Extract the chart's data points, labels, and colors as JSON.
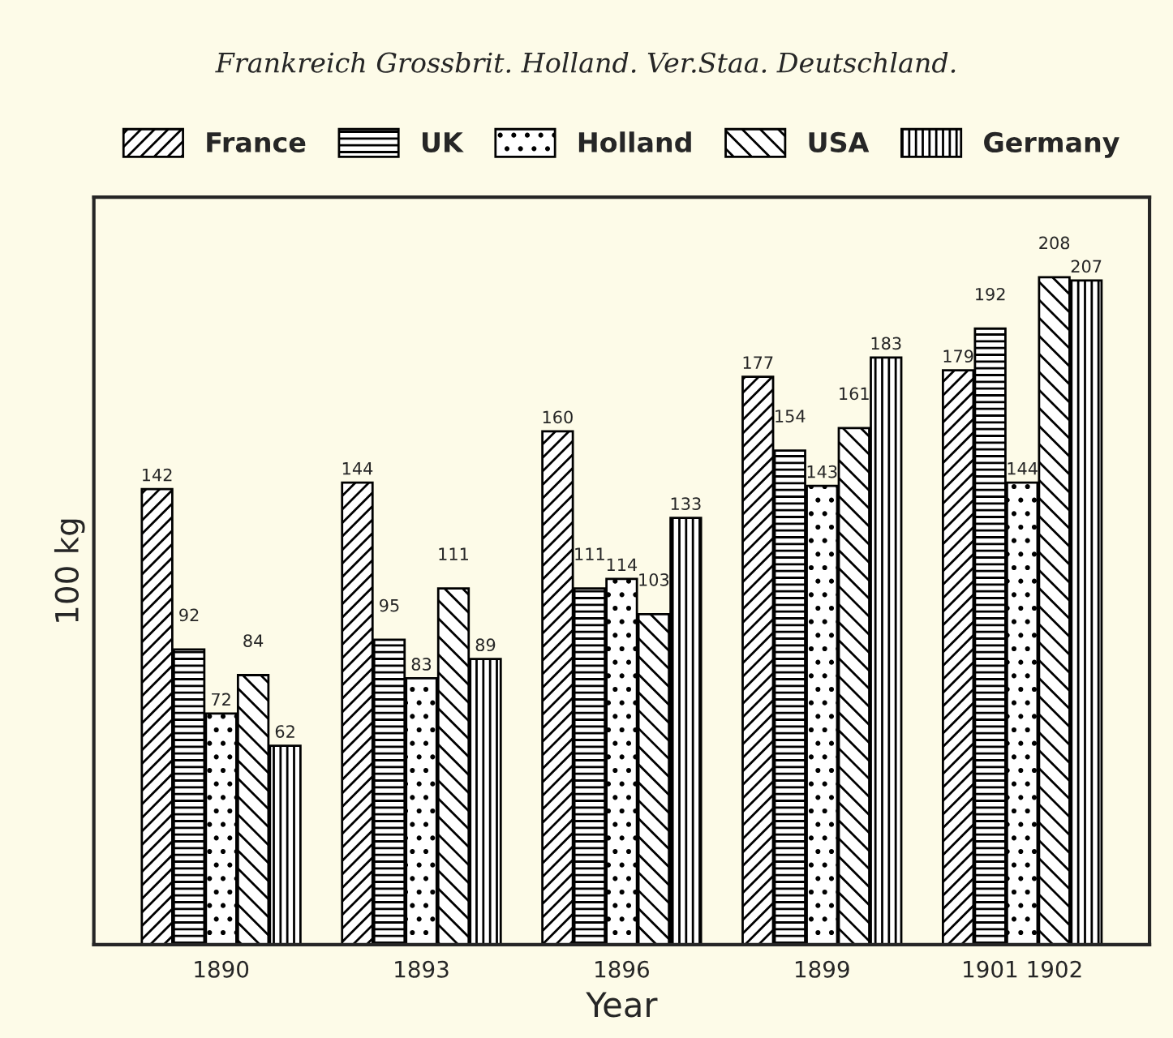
{
  "chart_data": {
    "type": "bar",
    "xlabel": "Year",
    "ylabel": "100 kg",
    "categories": [
      "1890",
      "1893",
      "1896",
      "1899",
      "1901 1902"
    ],
    "series": [
      {
        "name": "France",
        "color": "#000000",
        "values": [
          142,
          144,
          160,
          177,
          179
        ]
      },
      {
        "name": "UK",
        "color": "#000000",
        "values": [
          92,
          95,
          111,
          154,
          192
        ]
      },
      {
        "name": "Holland",
        "color": "#000000",
        "values": [
          72,
          83,
          114,
          143,
          144
        ]
      },
      {
        "name": "USA",
        "color": "#000000",
        "values": [
          84,
          111,
          103,
          161,
          208
        ]
      },
      {
        "name": "Germany",
        "color": "#000000",
        "values": [
          62,
          89,
          133,
          183,
          207
        ]
      }
    ],
    "annotations": [
      "Frankreich Grossbrit. Holland. Ver.Staa. Deutschland."
    ],
    "relative": false,
    "data_labels": true,
    "legend": "top",
    "grid": false
  }
}
